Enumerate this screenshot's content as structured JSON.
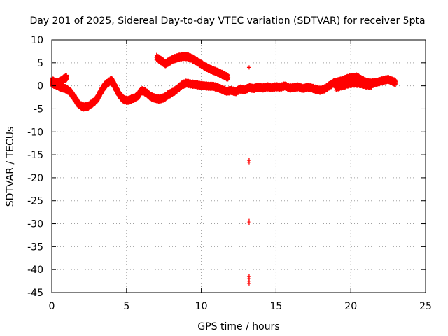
{
  "chart_data": {
    "type": "scatter",
    "title": "Day 201 of 2025, Sidereal Day-to-day VTEC variation (SDTVAR) for receiver 5pta",
    "xlabel": "GPS time / hours",
    "ylabel": "SDTVAR / TECUs",
    "xlim": [
      0,
      25
    ],
    "ylim": [
      -45,
      10
    ],
    "xticks": [
      0,
      5,
      10,
      15,
      20,
      25
    ],
    "yticks": [
      10,
      5,
      0,
      -5,
      -10,
      -15,
      -20,
      -25,
      -30,
      -35,
      -40,
      -45
    ],
    "grid": true,
    "marker": "+",
    "color": "#ff0000",
    "series": [
      {
        "name": "main-track",
        "x": [
          0.0,
          0.3,
          0.6,
          0.9,
          1.2,
          1.5,
          1.8,
          2.1,
          2.4,
          2.7,
          3.0,
          3.3,
          3.6,
          3.9,
          4.0,
          4.2,
          4.5,
          4.8,
          5.1,
          5.4,
          5.7,
          6.0,
          6.3,
          6.6,
          6.9,
          7.2,
          7.5,
          7.8,
          8.1,
          8.4,
          8.7,
          9.0,
          9.3,
          9.6,
          9.9,
          10.2,
          10.5,
          10.8,
          11.1,
          11.4,
          11.7,
          12.0,
          12.3,
          12.6,
          12.9,
          13.2,
          13.5,
          13.8,
          14.1,
          14.4,
          14.7,
          15.0,
          15.3,
          15.6,
          15.9,
          16.2,
          16.5,
          16.8,
          17.1,
          17.4,
          17.7,
          18.0,
          18.3,
          18.6,
          18.9,
          19.2,
          19.5,
          19.8,
          20.1,
          20.4,
          20.7,
          21.0,
          21.3,
          21.6,
          21.9,
          22.2,
          22.5,
          22.8,
          23.0
        ],
        "y": [
          0.5,
          0.2,
          -0.3,
          -0.6,
          -1.2,
          -2.5,
          -4.0,
          -4.6,
          -4.5,
          -3.8,
          -3.0,
          -1.2,
          0.3,
          1.0,
          1.2,
          0.0,
          -1.8,
          -3.0,
          -3.2,
          -2.8,
          -2.4,
          -1.0,
          -1.4,
          -2.3,
          -2.7,
          -2.9,
          -2.6,
          -1.9,
          -1.4,
          -0.7,
          0.2,
          0.6,
          0.4,
          0.3,
          0.1,
          0.0,
          -0.1,
          -0.1,
          -0.4,
          -0.8,
          -1.2,
          -1.0,
          -1.3,
          -0.7,
          -0.9,
          -0.4,
          -0.6,
          -0.3,
          -0.5,
          -0.2,
          -0.4,
          -0.2,
          -0.3,
          0.0,
          -0.5,
          -0.4,
          -0.2,
          -0.6,
          -0.3,
          -0.5,
          -0.8,
          -1.0,
          -0.6,
          0.1,
          0.7,
          0.9,
          1.2,
          1.6,
          1.8,
          1.9,
          1.3,
          0.8,
          0.6,
          0.7,
          0.9,
          1.2,
          1.4,
          1.0,
          0.7
        ]
      },
      {
        "name": "upper-arc",
        "x": [
          7.0,
          7.3,
          7.6,
          7.9,
          8.2,
          8.5,
          8.8,
          9.1,
          9.4,
          9.7,
          10.0,
          10.3,
          10.6,
          10.9,
          11.2,
          11.5,
          11.8
        ],
        "y": [
          6.2,
          5.5,
          4.8,
          5.4,
          5.9,
          6.2,
          6.4,
          6.3,
          5.9,
          5.3,
          4.7,
          4.1,
          3.6,
          3.2,
          2.8,
          2.3,
          1.8
        ]
      },
      {
        "name": "early-upper-branch",
        "x": [
          0.0,
          0.2,
          0.4,
          0.6,
          0.8,
          1.0
        ],
        "y": [
          1.2,
          0.8,
          0.6,
          1.0,
          1.5,
          1.8
        ]
      },
      {
        "name": "late-lower-branch",
        "x": [
          19.0,
          19.4,
          19.8,
          20.2,
          20.6,
          21.0,
          21.4
        ],
        "y": [
          -0.4,
          0.0,
          0.4,
          0.6,
          0.5,
          0.2,
          0.1
        ]
      },
      {
        "name": "outliers",
        "x": [
          13.2,
          13.2,
          13.2,
          13.2,
          13.2,
          13.2,
          13.2,
          13.2,
          13.2
        ],
        "y": [
          4.0,
          -16.2,
          -16.6,
          -29.4,
          -29.8,
          -41.5,
          -42.0,
          -42.5,
          -43.0
        ]
      }
    ]
  }
}
